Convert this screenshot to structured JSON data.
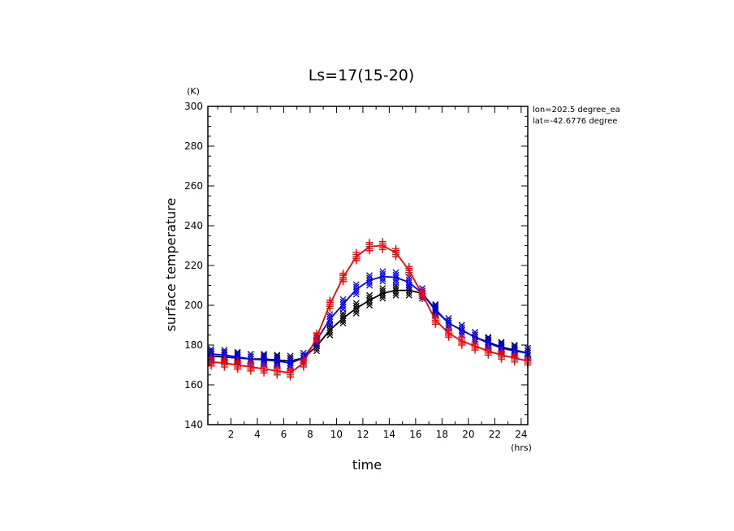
{
  "chart_data": {
    "type": "line",
    "title": "Ls=17(15-20)",
    "xlabel": "time",
    "ylabel": "surface temperature",
    "x_unit": "(hrs)",
    "y_unit": "(K)",
    "annotations": [
      "lon=202.5 degree_ea",
      "lat=-42.6776 degree"
    ],
    "xlim": [
      0.25,
      24.5
    ],
    "ylim": [
      140,
      300
    ],
    "x_ticks": [
      2,
      4,
      6,
      8,
      10,
      12,
      14,
      16,
      18,
      20,
      22,
      24
    ],
    "y_ticks": [
      140,
      160,
      180,
      200,
      220,
      240,
      260,
      280,
      300
    ],
    "x": [
      0.5,
      1.5,
      2.5,
      3.5,
      4.5,
      5.5,
      6.5,
      7.5,
      8.5,
      9.5,
      10.5,
      11.5,
      12.5,
      13.5,
      14.5,
      15.5,
      16.5,
      17.5,
      18.5,
      19.5,
      20.5,
      21.5,
      22.5,
      23.5,
      24.5
    ],
    "series": [
      {
        "color": "#000000",
        "marker": "x",
        "values": [
          174.5,
          174,
          173.5,
          173,
          173,
          172.5,
          172,
          173.5,
          179.5,
          187.5,
          193.5,
          198.5,
          202.5,
          206,
          207.5,
          207.5,
          206,
          197.5,
          191,
          187.5,
          184,
          181.5,
          179,
          177.5,
          176
        ],
        "spread": 2.5
      },
      {
        "color": "#0000ff",
        "marker": "x",
        "values": [
          175.5,
          175,
          174,
          173,
          172.5,
          172,
          171,
          173.5,
          182.5,
          193,
          200.5,
          208,
          212.5,
          214.5,
          214,
          211.5,
          206,
          198,
          191,
          187.5,
          184,
          181,
          178.5,
          177,
          176
        ],
        "spread": 2.5
      },
      {
        "color": "#ff0000",
        "marker": "plus",
        "values": [
          171.5,
          171,
          170,
          169,
          168,
          167,
          166,
          171,
          184,
          200.5,
          214,
          224.5,
          229.5,
          230,
          226.5,
          217.5,
          205.5,
          192.5,
          186,
          182,
          179.5,
          177,
          175,
          173.5,
          172
        ],
        "spread": 2
      }
    ]
  }
}
